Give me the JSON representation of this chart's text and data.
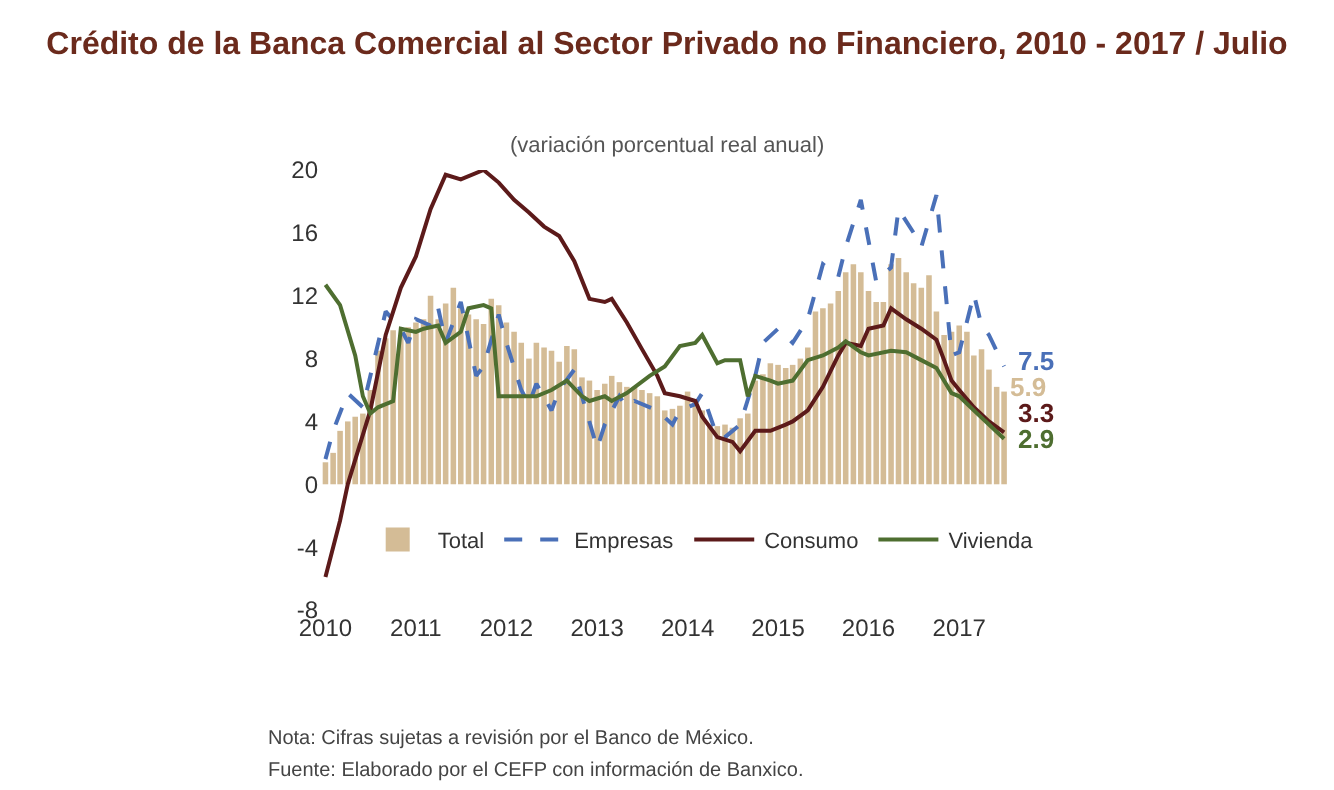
{
  "chart_data": {
    "type": "bar",
    "title": "Crédito de la Banca Comercial al Sector Privado no Financiero, 2010 - 2017 / Julio",
    "subtitle": "(variación porcentual real anual)",
    "annotations": [
      "Nota: Cifras sujetas a revisión por el Banco de México.",
      "Fuente: Elaborado por el CEFP con información de Banxico."
    ],
    "xlim": [
      "2009-12-10",
      "2017-08-10"
    ],
    "xticks": [
      {
        "value": "2010-01",
        "label": "2010"
      },
      {
        "value": "2011-01",
        "label": "2011"
      },
      {
        "value": "2012-01",
        "label": "2012"
      },
      {
        "value": "2013-01",
        "label": "2013"
      },
      {
        "value": "2014-01",
        "label": "2014"
      },
      {
        "value": "2015-01",
        "label": "2015"
      },
      {
        "value": "2016-01",
        "label": "2016"
      },
      {
        "value": "2017-01",
        "label": "2017"
      }
    ],
    "ylim": [
      -8,
      20
    ],
    "yticks": [
      -8,
      -4,
      0,
      4,
      8,
      12,
      16,
      20
    ],
    "grid": false,
    "legend": "bottom",
    "series": [
      {
        "name": "Total",
        "color": "#d4bc96",
        "x": [
          "2010-01",
          "2010-02",
          "2010-03",
          "2010-04",
          "2010-05",
          "2010-06",
          "2010-07",
          "2010-08",
          "2010-09",
          "2010-10",
          "2010-11",
          "2010-12",
          "2011-01",
          "2011-02",
          "2011-03",
          "2011-04",
          "2011-05",
          "2011-06",
          "2011-07",
          "2011-08",
          "2011-09",
          "2011-10",
          "2011-11",
          "2011-12",
          "2012-01",
          "2012-02",
          "2012-03",
          "2012-04",
          "2012-05",
          "2012-06",
          "2012-07",
          "2012-08",
          "2012-09",
          "2012-10",
          "2012-11",
          "2012-12",
          "2013-01",
          "2013-02",
          "2013-03",
          "2013-04",
          "2013-05",
          "2013-06",
          "2013-07",
          "2013-08",
          "2013-09",
          "2013-10",
          "2013-11",
          "2013-12",
          "2014-01",
          "2014-02",
          "2014-03",
          "2014-04",
          "2014-05",
          "2014-06",
          "2014-07",
          "2014-08",
          "2014-09",
          "2014-10",
          "2014-11",
          "2014-12",
          "2015-01",
          "2015-02",
          "2015-03",
          "2015-04",
          "2015-05",
          "2015-06",
          "2015-07",
          "2015-08",
          "2015-09",
          "2015-10",
          "2015-11",
          "2015-12",
          "2016-01",
          "2016-02",
          "2016-03",
          "2016-04",
          "2016-05",
          "2016-06",
          "2016-07",
          "2016-08",
          "2016-09",
          "2016-10",
          "2016-11",
          "2016-12",
          "2017-01",
          "2017-02",
          "2017-03",
          "2017-04",
          "2017-05",
          "2017-06",
          "2017-07"
        ],
        "values": [
          1.4,
          2,
          3.4,
          4,
          4.3,
          4.5,
          6,
          8.5,
          9.3,
          9.8,
          9.5,
          10,
          10.3,
          10.5,
          12,
          10.5,
          11.5,
          12.5,
          11.2,
          10.8,
          10.5,
          10.2,
          11.8,
          11.4,
          10.3,
          9.7,
          9,
          8,
          9,
          8.7,
          8.5,
          7.8,
          8.8,
          8.6,
          6.8,
          6.6,
          6,
          6.4,
          6.9,
          6.5,
          6.2,
          6.2,
          6,
          5.8,
          5.6,
          4.7,
          4.8,
          5,
          5.9,
          5.2,
          4.7,
          3.8,
          3.7,
          3.8,
          3.6,
          4.2,
          4.5,
          6.6,
          7,
          7.7,
          7.6,
          7.4,
          7.6,
          8,
          8.7,
          11,
          11.2,
          11.5,
          12.3,
          13.5,
          14,
          13.5,
          12.3,
          11.6,
          11.6,
          14,
          14.4,
          13.5,
          12.8,
          12.5,
          13.3,
          11,
          9.5,
          9.7,
          10.1,
          9.7,
          8.2,
          8.6,
          7.3,
          6.2,
          5.9
        ],
        "value_labels": [
          null,
          null,
          null,
          null,
          null,
          null,
          null,
          null,
          null,
          null,
          null,
          null,
          null,
          null,
          null,
          null,
          null,
          null,
          null,
          null,
          null,
          null,
          null,
          null,
          null,
          null,
          null,
          null,
          null,
          null,
          null,
          null,
          null,
          null,
          null,
          null,
          null,
          null,
          null,
          null,
          null,
          null,
          null,
          null,
          null,
          null,
          null,
          null,
          null,
          null,
          null,
          null,
          null,
          null,
          null,
          null,
          null,
          null,
          null,
          null,
          null,
          null,
          null,
          null,
          null,
          null,
          null,
          null,
          null,
          null,
          null,
          null,
          null,
          null,
          null,
          null,
          null,
          null,
          null,
          null,
          null,
          null,
          null,
          null,
          null,
          null,
          null,
          null,
          null,
          null,
          "5.9"
        ]
      },
      {
        "name": "Empresas",
        "type": "line",
        "line_style": "dashed",
        "color": "#4a70b8",
        "x": [
          "2010-01",
          "2010-02",
          "2010-04",
          "2010-06",
          "2010-09",
          "2010-11",
          "2010-12",
          "2011-01",
          "2011-03",
          "2011-04",
          "2011-05",
          "2011-07",
          "2011-09",
          "2011-10",
          "2011-12",
          "2012-01",
          "2012-03",
          "2012-04",
          "2012-05",
          "2012-07",
          "2012-08",
          "2012-10",
          "2012-11",
          "2013-01",
          "2013-02",
          "2013-04",
          "2013-05",
          "2013-06",
          "2013-09",
          "2013-11",
          "2013-12",
          "2014-02",
          "2014-03",
          "2014-05",
          "2014-06",
          "2014-08",
          "2014-10",
          "2014-11",
          "2015-01",
          "2015-03",
          "2015-05",
          "2015-07",
          "2015-09",
          "2015-10",
          "2015-12",
          "2016-01",
          "2016-02",
          "2016-04",
          "2016-05",
          "2016-07",
          "2016-08",
          "2016-10",
          "2016-12",
          "2017-01",
          "2017-03",
          "2017-04",
          "2017-05",
          "2017-07"
        ],
        "values": [
          1.6,
          3.4,
          5.8,
          4.9,
          11,
          9.9,
          9,
          10.5,
          10.1,
          11.2,
          9,
          11.6,
          6.9,
          7.5,
          10.8,
          9,
          6,
          5.1,
          6.4,
          4.7,
          6,
          7.3,
          5.6,
          2.3,
          3.8,
          5.6,
          4.9,
          5.3,
          4.7,
          3.8,
          4.7,
          5.1,
          5.8,
          3,
          3,
          3.8,
          6.9,
          9,
          9.9,
          9,
          10.5,
          14,
          13.2,
          15.1,
          18.1,
          15.5,
          12.9,
          13.8,
          17.5,
          16,
          15.1,
          18.4,
          8.2,
          8.4,
          12.1,
          10.1,
          9.5,
          7.5
        ],
        "value_labels": [
          null,
          null,
          null,
          null,
          null,
          null,
          null,
          null,
          null,
          null,
          null,
          null,
          null,
          null,
          null,
          null,
          null,
          null,
          null,
          null,
          null,
          null,
          null,
          null,
          null,
          null,
          null,
          null,
          null,
          null,
          null,
          null,
          null,
          null,
          null,
          null,
          null,
          null,
          null,
          null,
          null,
          null,
          null,
          null,
          null,
          null,
          null,
          null,
          null,
          null,
          null,
          null,
          null,
          null,
          null,
          null,
          null,
          "7.5"
        ]
      },
      {
        "name": "Consumo",
        "type": "line",
        "line_style": "solid",
        "color": "#5c1a1a",
        "x": [
          "2010-01",
          "2010-03",
          "2010-04",
          "2010-07",
          "2010-09",
          "2010-11",
          "2011-01",
          "2011-03",
          "2011-05",
          "2011-07",
          "2011-10",
          "2011-12",
          "2012-02",
          "2012-04",
          "2012-06",
          "2012-08",
          "2012-10",
          "2012-12",
          "2013-02",
          "2013-03",
          "2013-05",
          "2013-07",
          "2013-09",
          "2013-10",
          "2013-12",
          "2014-02",
          "2014-03",
          "2014-05",
          "2014-07",
          "2014-08",
          "2014-10",
          "2014-12",
          "2015-02",
          "2015-03",
          "2015-05",
          "2015-07",
          "2015-09",
          "2015-10",
          "2015-12",
          "2016-01",
          "2016-03",
          "2016-04",
          "2016-06",
          "2016-08",
          "2016-10",
          "2016-11",
          "2016-12",
          "2017-01",
          "2017-03",
          "2017-05",
          "2017-07"
        ],
        "values": [
          -5.9,
          -2.3,
          0,
          4.7,
          9.5,
          12.5,
          14.5,
          17.5,
          19.7,
          19.4,
          20,
          19.2,
          18.1,
          17.3,
          16.4,
          15.8,
          14.2,
          11.8,
          11.6,
          11.8,
          10.3,
          8.6,
          6.9,
          5.8,
          5.6,
          5.3,
          4.3,
          3,
          2.7,
          2.1,
          3.4,
          3.4,
          3.8,
          4,
          4.7,
          6.2,
          8.2,
          9,
          8.8,
          9.9,
          10.1,
          11.2,
          10.5,
          9.9,
          9.2,
          7.9,
          6.6,
          6,
          4.9,
          4,
          3.3
        ],
        "value_labels": [
          null,
          null,
          null,
          null,
          null,
          null,
          null,
          null,
          null,
          null,
          null,
          null,
          null,
          null,
          null,
          null,
          null,
          null,
          null,
          null,
          null,
          null,
          null,
          null,
          null,
          null,
          null,
          null,
          null,
          null,
          null,
          null,
          null,
          null,
          null,
          null,
          null,
          null,
          null,
          null,
          null,
          null,
          null,
          null,
          null,
          null,
          null,
          null,
          null,
          null,
          "3.3"
        ]
      },
      {
        "name": "Vivienda",
        "type": "line",
        "line_style": "solid",
        "color": "#4e6e30",
        "x": [
          "2010-01",
          "2010-03",
          "2010-05",
          "2010-06",
          "2010-07",
          "2010-08",
          "2010-10",
          "2010-11",
          "2011-01",
          "2011-02",
          "2011-04",
          "2011-05",
          "2011-07",
          "2011-08",
          "2011-10",
          "2011-11",
          "2011-12",
          "2012-02",
          "2012-05",
          "2012-07",
          "2012-09",
          "2012-11",
          "2012-12",
          "2013-02",
          "2013-03",
          "2013-05",
          "2013-08",
          "2013-10",
          "2013-12",
          "2014-02",
          "2014-03",
          "2014-05",
          "2014-06",
          "2014-08",
          "2014-09",
          "2014-10",
          "2014-12",
          "2015-01",
          "2015-03",
          "2015-05",
          "2015-07",
          "2015-09",
          "2015-10",
          "2015-12",
          "2016-01",
          "2016-04",
          "2016-06",
          "2016-08",
          "2016-10",
          "2016-12",
          "2017-01",
          "2017-03",
          "2017-05",
          "2017-07"
        ],
        "values": [
          12.7,
          11.4,
          8.2,
          5.6,
          4.5,
          4.9,
          5.3,
          9.9,
          9.7,
          9.9,
          10.1,
          9,
          9.7,
          11.2,
          11.4,
          11.2,
          5.6,
          5.6,
          5.6,
          6,
          6.6,
          5.6,
          5.3,
          5.6,
          5.3,
          5.8,
          6.9,
          7.5,
          8.8,
          9,
          9.5,
          7.7,
          7.9,
          7.9,
          5.6,
          6.9,
          6.6,
          6.4,
          6.6,
          7.9,
          8.2,
          8.7,
          9.1,
          8.4,
          8.2,
          8.5,
          8.4,
          7.9,
          7.4,
          5.8,
          5.6,
          4.7,
          3.8,
          2.9
        ],
        "value_labels": [
          null,
          null,
          null,
          null,
          null,
          null,
          null,
          null,
          null,
          null,
          null,
          null,
          null,
          null,
          null,
          null,
          null,
          null,
          null,
          null,
          null,
          null,
          null,
          null,
          null,
          null,
          null,
          null,
          null,
          null,
          null,
          null,
          null,
          null,
          null,
          null,
          null,
          null,
          null,
          null,
          null,
          null,
          null,
          null,
          null,
          null,
          null,
          null,
          null,
          null,
          null,
          null,
          null,
          "2.9"
        ]
      }
    ]
  }
}
